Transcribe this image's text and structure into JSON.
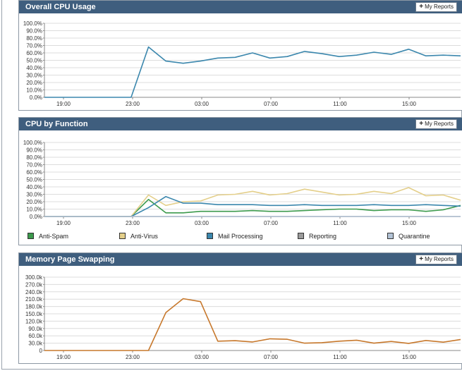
{
  "panels": [
    {
      "title": "Overall CPU Usage",
      "button": "My Reports",
      "chart_data": {
        "type": "line",
        "yticks": [
          "100.0%",
          "90.0%",
          "80.0%",
          "70.0%",
          "60.0%",
          "50.0%",
          "40.0%",
          "30.0%",
          "20.0%",
          "10.0%",
          "0.0%"
        ],
        "ylim": [
          0,
          100
        ],
        "xticks": [
          "19:00",
          "23:00",
          "03:00",
          "07:00",
          "11:00",
          "15:00"
        ],
        "series": [
          {
            "color": "#3b87ad",
            "values": [
              0,
              0,
              0,
              0,
              0,
              0,
              68,
              49,
              46,
              49,
              53,
              54,
              60,
              53,
              55,
              62,
              59,
              55,
              57,
              61,
              58,
              65,
              56,
              57,
              56
            ]
          }
        ]
      }
    },
    {
      "title": "CPU by Function",
      "button": "My Reports",
      "chart_data": {
        "type": "line",
        "yticks": [
          "100.0%",
          "90.0%",
          "80.0%",
          "70.0%",
          "60.0%",
          "50.0%",
          "40.0%",
          "30.0%",
          "20.0%",
          "10.0%",
          "0.0%"
        ],
        "ylim": [
          0,
          100
        ],
        "xticks": [
          "19:00",
          "23:00",
          "03:00",
          "07:00",
          "11:00",
          "15:00"
        ],
        "series": [
          {
            "name": "Anti-Spam",
            "color": "#3c9a4c",
            "values": [
              0,
              0,
              0,
              0,
              0,
              0,
              23,
              5,
              5,
              7,
              7,
              7,
              8,
              7,
              7,
              8,
              9,
              10,
              10,
              8,
              9,
              9,
              7,
              9,
              15
            ]
          },
          {
            "name": "Anti-Virus",
            "color": "#e4cf8a",
            "values": [
              0,
              0,
              0,
              0,
              0,
              0,
              29,
              15,
              20,
              21,
              29,
              30,
              34,
              29,
              31,
              37,
              33,
              29,
              30,
              34,
              31,
              39,
              28,
              29,
              22
            ]
          },
          {
            "name": "Mail Processing",
            "color": "#3b87ad",
            "values": [
              0,
              0,
              0,
              0,
              0,
              0,
              12,
              27,
              18,
              18,
              16,
              16,
              16,
              15,
              15,
              16,
              15,
              15,
              15,
              16,
              15,
              15,
              16,
              15,
              14
            ]
          },
          {
            "name": "Reporting",
            "color": "#9b9b9b",
            "values": [
              0,
              0,
              0,
              0,
              0,
              0,
              0,
              0,
              0,
              0,
              0,
              0,
              0,
              0,
              0,
              0,
              0,
              0,
              0,
              0,
              0,
              0,
              0,
              0,
              0
            ]
          },
          {
            "name": "Quarantine",
            "color": "#b3c3d6",
            "values": [
              0,
              0,
              0,
              0,
              0,
              0,
              0,
              0,
              0,
              0,
              0,
              0,
              0,
              0,
              0,
              0,
              0,
              0,
              0,
              0,
              0,
              0,
              0,
              0,
              0
            ]
          }
        ]
      }
    },
    {
      "title": "Memory Page Swapping",
      "button": "My Reports",
      "chart_data": {
        "type": "line",
        "yticks": [
          "300.0k",
          "270.0k",
          "240.0k",
          "210.0k",
          "180.0k",
          "150.0k",
          "120.0k",
          "90.0k",
          "60.0k",
          "30.0k",
          "0"
        ],
        "ylim": [
          0,
          300000
        ],
        "xticks": [
          "19:00",
          "23:00",
          "03:00",
          "07:00",
          "11:00",
          "15:00"
        ],
        "series": [
          {
            "color": "#c7782c",
            "values": [
              0,
              0,
              0,
              0,
              0,
              0,
              0,
              155000,
              212000,
              200000,
              38000,
              40000,
              35000,
              48000,
              46000,
              30000,
              32000,
              38000,
              42000,
              30000,
              37000,
              29000,
              41000,
              34000,
              45000
            ]
          }
        ]
      }
    }
  ]
}
